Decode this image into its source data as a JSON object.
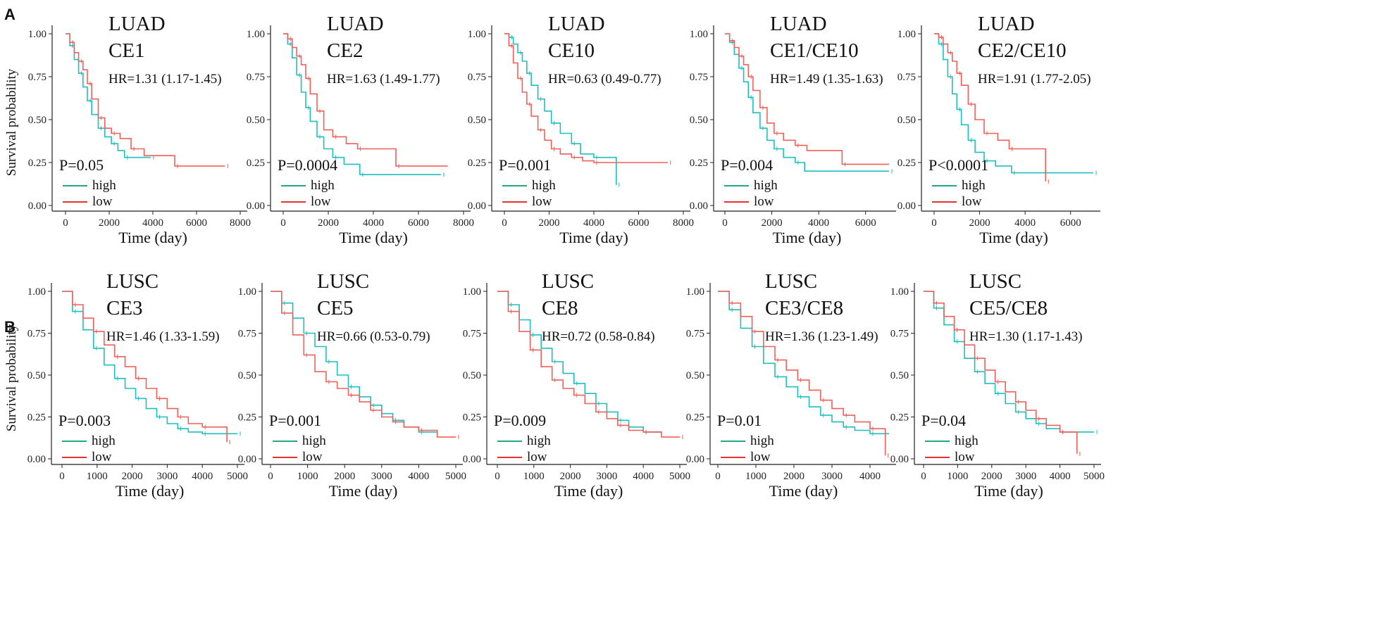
{
  "figure": {
    "panel_labels": [
      "A",
      "B"
    ],
    "colors": {
      "high": "#1fbfbf",
      "low": "#f0605a",
      "axis": "#222222",
      "legend_high": "#22a884",
      "legend_low": "#e8322e"
    }
  },
  "chart_data": [
    {
      "type": "line",
      "panel": "A",
      "cancer": "LUAD",
      "group": "CE1",
      "hr": "HR=1.31 (1.17-1.45)",
      "p": "P=0.05",
      "xlabel": "Time (day)",
      "ylabel": "Survival probability",
      "xlim": [
        0,
        8000
      ],
      "ylim": [
        0,
        1
      ],
      "xticks": [
        "0",
        "2000",
        "4000",
        "6000",
        "8000"
      ],
      "yticks": [
        "0.00",
        "0.25",
        "0.50",
        "0.75",
        "1.00"
      ],
      "legend": [
        "high",
        "low"
      ],
      "series": [
        {
          "name": "high",
          "x": [
            0,
            200,
            400,
            600,
            800,
            1000,
            1200,
            1500,
            1800,
            2100,
            2400,
            2700,
            3000,
            3900
          ],
          "y": [
            1.0,
            0.93,
            0.85,
            0.77,
            0.69,
            0.61,
            0.53,
            0.45,
            0.4,
            0.36,
            0.32,
            0.28,
            0.28,
            0.28
          ]
        },
        {
          "name": "low",
          "x": [
            0,
            200,
            400,
            600,
            800,
            1000,
            1200,
            1500,
            1800,
            2100,
            2500,
            3000,
            3600,
            5000,
            6500,
            7300
          ],
          "y": [
            1.0,
            0.95,
            0.89,
            0.84,
            0.79,
            0.71,
            0.62,
            0.51,
            0.45,
            0.42,
            0.39,
            0.33,
            0.29,
            0.23,
            0.23,
            0.23
          ]
        }
      ]
    },
    {
      "type": "line",
      "panel": "A",
      "cancer": "LUAD",
      "group": "CE2",
      "hr": "HR=1.63 (1.49-1.77)",
      "p": "P=0.0004",
      "xlabel": "Time (day)",
      "ylabel": "",
      "xlim": [
        0,
        8000
      ],
      "ylim": [
        0,
        1
      ],
      "xticks": [
        "0",
        "2000",
        "4000",
        "6000",
        "8000"
      ],
      "yticks": [
        "0.00",
        "0.25",
        "0.50",
        "0.75",
        "1.00"
      ],
      "legend": [
        "high",
        "low"
      ],
      "series": [
        {
          "name": "high",
          "x": [
            0,
            200,
            400,
            600,
            800,
            1000,
            1200,
            1500,
            1800,
            2200,
            2700,
            3400,
            5000,
            7000
          ],
          "y": [
            1.0,
            0.94,
            0.86,
            0.76,
            0.66,
            0.57,
            0.49,
            0.4,
            0.33,
            0.28,
            0.24,
            0.18,
            0.18,
            0.18
          ]
        },
        {
          "name": "low",
          "x": [
            0,
            200,
            400,
            600,
            800,
            1000,
            1200,
            1500,
            1800,
            2200,
            2800,
            3300,
            4900,
            5000,
            7300
          ],
          "y": [
            1.0,
            0.97,
            0.92,
            0.87,
            0.82,
            0.74,
            0.65,
            0.55,
            0.44,
            0.4,
            0.36,
            0.33,
            0.33,
            0.23,
            0.23
          ]
        }
      ]
    },
    {
      "type": "line",
      "panel": "A",
      "cancer": "LUAD",
      "group": "CE10",
      "hr": "HR=0.63 (0.49-0.77)",
      "p": "P=0.001",
      "xlabel": "Time (day)",
      "ylabel": "",
      "xlim": [
        0,
        8000
      ],
      "ylim": [
        0,
        1
      ],
      "xticks": [
        "0",
        "2000",
        "4000",
        "6000",
        "8000"
      ],
      "yticks": [
        "0.00",
        "0.25",
        "0.50",
        "0.75",
        "1.00"
      ],
      "legend": [
        "high",
        "low"
      ],
      "series": [
        {
          "name": "high",
          "x": [
            0,
            200,
            400,
            600,
            800,
            1000,
            1200,
            1500,
            1800,
            2100,
            2500,
            3000,
            3400,
            4000,
            5000,
            5001
          ],
          "y": [
            1.0,
            0.98,
            0.94,
            0.89,
            0.84,
            0.77,
            0.7,
            0.62,
            0.55,
            0.48,
            0.42,
            0.36,
            0.3,
            0.28,
            0.28,
            0.12
          ]
        },
        {
          "name": "low",
          "x": [
            0,
            200,
            400,
            600,
            800,
            1000,
            1200,
            1500,
            1800,
            2100,
            2500,
            3000,
            3500,
            4000,
            5500,
            7300
          ],
          "y": [
            1.0,
            0.93,
            0.83,
            0.74,
            0.66,
            0.59,
            0.52,
            0.44,
            0.38,
            0.33,
            0.3,
            0.28,
            0.26,
            0.25,
            0.25,
            0.25
          ]
        }
      ]
    },
    {
      "type": "line",
      "panel": "A",
      "cancer": "LUAD",
      "group": "CE1/CE10",
      "hr": "HR=1.49 (1.35-1.63)",
      "p": "P=0.004",
      "xlabel": "Time (day)",
      "ylabel": "",
      "xlim": [
        0,
        7000
      ],
      "ylim": [
        0,
        1
      ],
      "xticks": [
        "0",
        "2000",
        "4000",
        "6000"
      ],
      "yticks": [
        "0.00",
        "0.25",
        "0.50",
        "0.75",
        "1.00"
      ],
      "legend": [
        "high",
        "low"
      ],
      "series": [
        {
          "name": "high",
          "x": [
            0,
            200,
            400,
            600,
            800,
            1000,
            1200,
            1500,
            1800,
            2100,
            2500,
            3000,
            3400,
            7000
          ],
          "y": [
            1.0,
            0.95,
            0.88,
            0.8,
            0.72,
            0.63,
            0.54,
            0.45,
            0.38,
            0.33,
            0.28,
            0.25,
            0.2,
            0.2
          ]
        },
        {
          "name": "low",
          "x": [
            0,
            200,
            400,
            600,
            800,
            1000,
            1200,
            1500,
            1800,
            2100,
            2500,
            3000,
            3500,
            5000,
            7000
          ],
          "y": [
            1.0,
            0.96,
            0.92,
            0.87,
            0.82,
            0.75,
            0.67,
            0.57,
            0.48,
            0.42,
            0.38,
            0.35,
            0.32,
            0.24,
            0.24
          ]
        }
      ]
    },
    {
      "type": "line",
      "panel": "A",
      "cancer": "LUAD",
      "group": "CE2/CE10",
      "hr": "HR=1.91 (1.77-2.05)",
      "p": "P<0.0001",
      "xlabel": "Time (day)",
      "ylabel": "",
      "xlim": [
        0,
        7000
      ],
      "ylim": [
        0,
        1
      ],
      "xticks": [
        "0",
        "2000",
        "4000",
        "6000"
      ],
      "yticks": [
        "0.00",
        "0.25",
        "0.50",
        "0.75",
        "1.00"
      ],
      "legend": [
        "high",
        "low"
      ],
      "series": [
        {
          "name": "high",
          "x": [
            0,
            200,
            400,
            600,
            800,
            1000,
            1200,
            1500,
            1800,
            2200,
            2700,
            3400,
            5000,
            7000
          ],
          "y": [
            1.0,
            0.94,
            0.85,
            0.75,
            0.65,
            0.56,
            0.47,
            0.38,
            0.31,
            0.26,
            0.23,
            0.19,
            0.19,
            0.19
          ]
        },
        {
          "name": "low",
          "x": [
            0,
            200,
            400,
            600,
            800,
            1000,
            1200,
            1500,
            1800,
            2200,
            2800,
            3300,
            4900,
            4901
          ],
          "y": [
            1.0,
            0.98,
            0.94,
            0.89,
            0.84,
            0.77,
            0.7,
            0.59,
            0.5,
            0.42,
            0.38,
            0.33,
            0.33,
            0.14
          ]
        }
      ]
    },
    {
      "type": "line",
      "panel": "B",
      "cancer": "LUSC",
      "group": "CE3",
      "hr": "HR=1.46 (1.33-1.59)",
      "p": "P=0.003",
      "xlabel": "Time (day)",
      "ylabel": "Survival probability",
      "xlim": [
        0,
        5000
      ],
      "ylim": [
        0,
        1
      ],
      "xticks": [
        "0",
        "1000",
        "2000",
        "3000",
        "4000",
        "5000"
      ],
      "yticks": [
        "0.00",
        "0.25",
        "0.50",
        "0.75",
        "1.00"
      ],
      "legend": [
        "high",
        "low"
      ],
      "series": [
        {
          "name": "high",
          "x": [
            0,
            300,
            600,
            900,
            1200,
            1500,
            1800,
            2100,
            2400,
            2700,
            3000,
            3300,
            3600,
            4000,
            4600,
            5000
          ],
          "y": [
            1.0,
            0.88,
            0.77,
            0.66,
            0.56,
            0.48,
            0.42,
            0.36,
            0.3,
            0.25,
            0.21,
            0.18,
            0.16,
            0.15,
            0.15,
            0.15
          ]
        },
        {
          "name": "low",
          "x": [
            0,
            300,
            600,
            900,
            1200,
            1500,
            1800,
            2100,
            2400,
            2700,
            3000,
            3300,
            3600,
            4000,
            4600,
            4700
          ],
          "y": [
            1.0,
            0.92,
            0.84,
            0.76,
            0.68,
            0.61,
            0.55,
            0.48,
            0.42,
            0.36,
            0.3,
            0.25,
            0.21,
            0.19,
            0.19,
            0.1
          ]
        }
      ]
    },
    {
      "type": "line",
      "panel": "B",
      "cancer": "LUSC",
      "group": "CE5",
      "hr": "HR=0.66 (0.53-0.79)",
      "p": "P=0.001",
      "xlabel": "Time (day)",
      "ylabel": "",
      "xlim": [
        0,
        5000
      ],
      "ylim": [
        0,
        1
      ],
      "xticks": [
        "0",
        "1000",
        "2000",
        "3000",
        "4000",
        "5000"
      ],
      "yticks": [
        "0.00",
        "0.25",
        "0.50",
        "0.75",
        "1.00"
      ],
      "legend": [
        "high",
        "low"
      ],
      "series": [
        {
          "name": "high",
          "x": [
            0,
            300,
            600,
            900,
            1200,
            1500,
            1800,
            2100,
            2400,
            2700,
            3000,
            3300,
            3600,
            4000,
            4500
          ],
          "y": [
            1.0,
            0.93,
            0.84,
            0.75,
            0.67,
            0.58,
            0.5,
            0.43,
            0.37,
            0.32,
            0.27,
            0.23,
            0.19,
            0.16,
            0.16
          ]
        },
        {
          "name": "low",
          "x": [
            0,
            300,
            600,
            900,
            1200,
            1500,
            1800,
            2100,
            2400,
            2700,
            3000,
            3300,
            3600,
            4000,
            4500,
            5000
          ],
          "y": [
            1.0,
            0.87,
            0.74,
            0.62,
            0.52,
            0.46,
            0.42,
            0.38,
            0.34,
            0.29,
            0.25,
            0.22,
            0.19,
            0.17,
            0.13,
            0.13
          ]
        }
      ]
    },
    {
      "type": "line",
      "panel": "B",
      "cancer": "LUSC",
      "group": "CE8",
      "hr": "HR=0.72 (0.58-0.84)",
      "p": "P=0.009",
      "xlabel": "Time (day)",
      "ylabel": "",
      "xlim": [
        0,
        5000
      ],
      "ylim": [
        0,
        1
      ],
      "xticks": [
        "0",
        "1000",
        "2000",
        "3000",
        "4000",
        "5000"
      ],
      "yticks": [
        "0.00",
        "0.25",
        "0.50",
        "0.75",
        "1.00"
      ],
      "legend": [
        "high",
        "low"
      ],
      "series": [
        {
          "name": "high",
          "x": [
            0,
            300,
            600,
            900,
            1200,
            1500,
            1800,
            2100,
            2400,
            2700,
            3000,
            3300,
            3600,
            4000,
            4500
          ],
          "y": [
            1.0,
            0.92,
            0.83,
            0.74,
            0.66,
            0.58,
            0.51,
            0.45,
            0.39,
            0.33,
            0.28,
            0.23,
            0.19,
            0.16,
            0.16
          ]
        },
        {
          "name": "low",
          "x": [
            0,
            300,
            600,
            900,
            1200,
            1500,
            1800,
            2100,
            2400,
            2700,
            3000,
            3300,
            3600,
            4000,
            4500,
            5000
          ],
          "y": [
            1.0,
            0.88,
            0.76,
            0.65,
            0.55,
            0.47,
            0.42,
            0.38,
            0.33,
            0.28,
            0.24,
            0.2,
            0.17,
            0.16,
            0.13,
            0.13
          ]
        }
      ]
    },
    {
      "type": "line",
      "panel": "B",
      "cancer": "LUSC",
      "group": "CE3/CE8",
      "hr": "HR=1.36 (1.23-1.49)",
      "p": "P=0.01",
      "xlabel": "Time (day)",
      "ylabel": "",
      "xlim": [
        0,
        4500
      ],
      "ylim": [
        0,
        1
      ],
      "xticks": [
        "0",
        "1000",
        "2000",
        "3000",
        "4000"
      ],
      "yticks": [
        "0.00",
        "0.25",
        "0.50",
        "0.75",
        "1.00"
      ],
      "legend": [
        "high",
        "low"
      ],
      "series": [
        {
          "name": "high",
          "x": [
            0,
            300,
            600,
            900,
            1200,
            1500,
            1800,
            2100,
            2400,
            2700,
            3000,
            3300,
            3600,
            4000,
            4500
          ],
          "y": [
            1.0,
            0.89,
            0.78,
            0.67,
            0.57,
            0.49,
            0.43,
            0.37,
            0.31,
            0.26,
            0.22,
            0.19,
            0.17,
            0.15,
            0.15
          ]
        },
        {
          "name": "low",
          "x": [
            0,
            300,
            600,
            900,
            1200,
            1500,
            1800,
            2100,
            2400,
            2700,
            3000,
            3300,
            3600,
            4000,
            4400,
            4401
          ],
          "y": [
            1.0,
            0.93,
            0.85,
            0.76,
            0.67,
            0.59,
            0.53,
            0.47,
            0.41,
            0.35,
            0.3,
            0.26,
            0.22,
            0.18,
            0.17,
            0.02
          ]
        }
      ]
    },
    {
      "type": "line",
      "panel": "B",
      "cancer": "LUSC",
      "group": "CE5/CE8",
      "hr": "HR=1.30 (1.17-1.43)",
      "p": "P=0.04",
      "xlabel": "Time (day)",
      "ylabel": "",
      "xlim": [
        0,
        5000
      ],
      "ylim": [
        0,
        1
      ],
      "xticks": [
        "0",
        "1000",
        "2000",
        "3000",
        "4000",
        "5000"
      ],
      "yticks": [
        "0.00",
        "0.25",
        "0.50",
        "0.75",
        "1.00"
      ],
      "legend": [
        "high",
        "low"
      ],
      "series": [
        {
          "name": "high",
          "x": [
            0,
            300,
            600,
            900,
            1200,
            1500,
            1800,
            2100,
            2400,
            2700,
            3000,
            3300,
            3600,
            4000,
            4600,
            5000
          ],
          "y": [
            1.0,
            0.9,
            0.8,
            0.7,
            0.6,
            0.52,
            0.45,
            0.39,
            0.33,
            0.28,
            0.24,
            0.21,
            0.18,
            0.16,
            0.16,
            0.16
          ]
        },
        {
          "name": "low",
          "x": [
            0,
            300,
            600,
            900,
            1200,
            1500,
            1800,
            2100,
            2400,
            2700,
            3000,
            3300,
            3600,
            4000,
            4500,
            4501
          ],
          "y": [
            1.0,
            0.93,
            0.85,
            0.77,
            0.68,
            0.6,
            0.53,
            0.46,
            0.4,
            0.34,
            0.29,
            0.24,
            0.2,
            0.16,
            0.15,
            0.03
          ]
        }
      ]
    }
  ]
}
